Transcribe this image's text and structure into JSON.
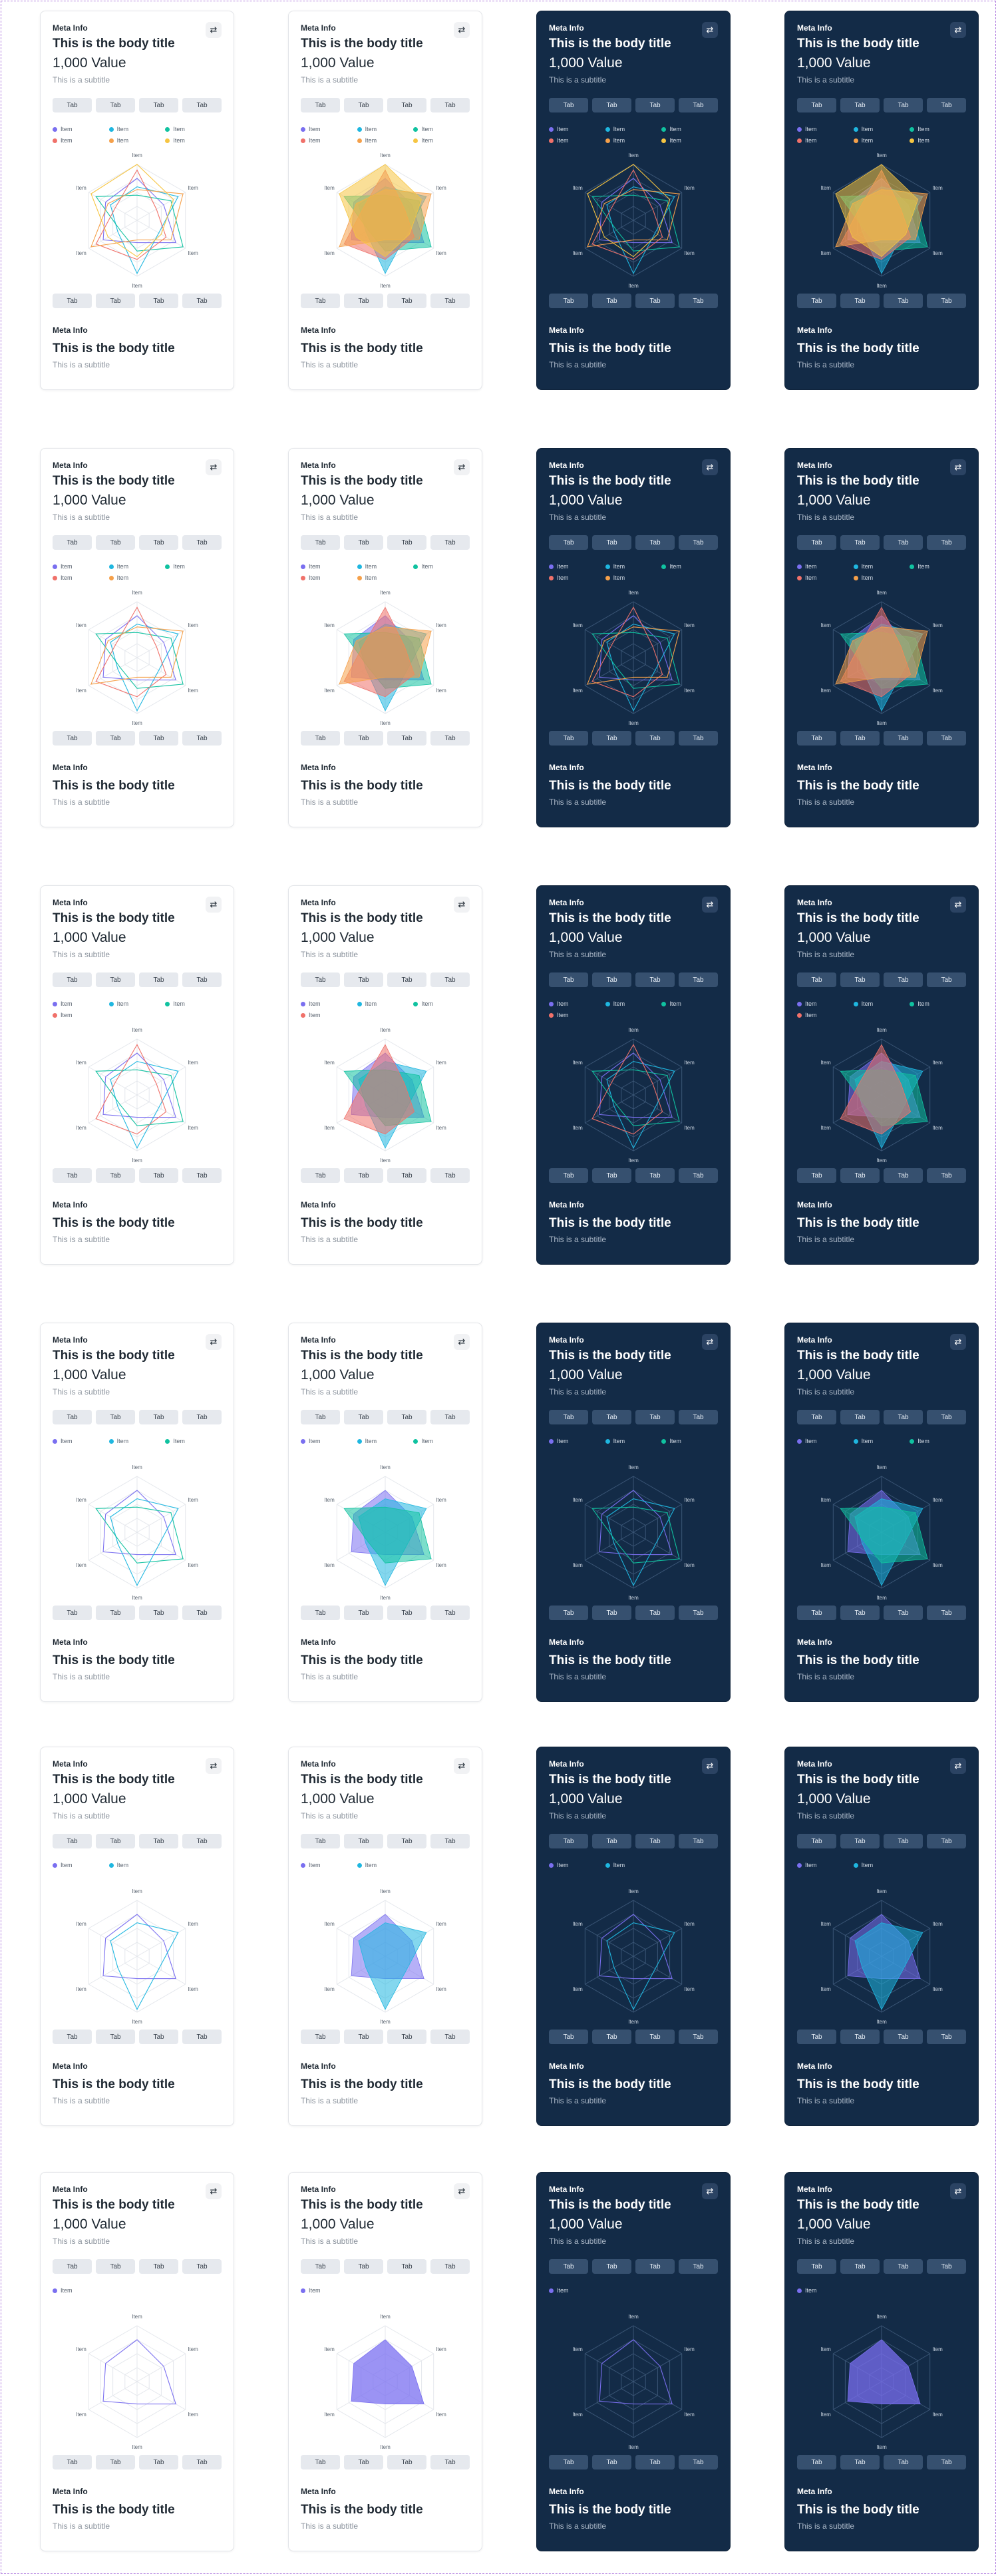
{
  "card": {
    "meta": "Meta Info",
    "title": "This is the body title",
    "value": "1,000 Value",
    "subtitle": "This is a subtitle",
    "swap_icon": "swap-arrows-icon",
    "tab_label": "Tab",
    "bottom_meta": "Meta Info",
    "bottom_title": "This is the body title",
    "bottom_subtitle": "This is a subtitle"
  },
  "axis_label": "Item",
  "legend_label": "Item",
  "colors": {
    "light_background": "#ffffff",
    "dark_background": "#132b47",
    "series": [
      "#7a6ff0",
      "#1fb7e0",
      "#10c2a0",
      "#f0716a",
      "#f5a04a",
      "#f6c542"
    ]
  },
  "variants": [
    "light-lines",
    "light-filled",
    "dark-lines",
    "dark-filled"
  ],
  "chart_data": [
    {
      "type": "radar",
      "axes": [
        "Item",
        "Item",
        "Item",
        "Item",
        "Item",
        "Item"
      ],
      "series": [
        {
          "name": "Item",
          "values": [
            75,
            55,
            80,
            40,
            70,
            65
          ]
        },
        {
          "name": "Item",
          "values": [
            60,
            85,
            45,
            95,
            40,
            55
          ]
        },
        {
          "name": "Item",
          "values": [
            45,
            70,
            95,
            55,
            35,
            85
          ]
        },
        {
          "name": "Item",
          "values": [
            90,
            40,
            60,
            70,
            85,
            45
          ]
        },
        {
          "name": "Item",
          "values": [
            55,
            95,
            70,
            35,
            95,
            60
          ]
        },
        {
          "name": "Item",
          "values": [
            100,
            75,
            50,
            65,
            60,
            95
          ]
        }
      ]
    },
    {
      "type": "radar",
      "axes": [
        "Item",
        "Item",
        "Item",
        "Item",
        "Item",
        "Item"
      ],
      "series": [
        {
          "name": "Item",
          "values": [
            75,
            55,
            80,
            40,
            70,
            65
          ]
        },
        {
          "name": "Item",
          "values": [
            60,
            85,
            45,
            95,
            40,
            55
          ]
        },
        {
          "name": "Item",
          "values": [
            45,
            70,
            95,
            55,
            35,
            85
          ]
        },
        {
          "name": "Item",
          "values": [
            90,
            40,
            60,
            70,
            85,
            45
          ]
        },
        {
          "name": "Item",
          "values": [
            55,
            95,
            70,
            35,
            95,
            60
          ]
        }
      ]
    },
    {
      "type": "radar",
      "axes": [
        "Item",
        "Item",
        "Item",
        "Item",
        "Item",
        "Item"
      ],
      "series": [
        {
          "name": "Item",
          "values": [
            75,
            55,
            80,
            40,
            70,
            65
          ]
        },
        {
          "name": "Item",
          "values": [
            60,
            85,
            45,
            95,
            40,
            55
          ]
        },
        {
          "name": "Item",
          "values": [
            45,
            70,
            95,
            55,
            35,
            85
          ]
        },
        {
          "name": "Item",
          "values": [
            90,
            40,
            60,
            70,
            85,
            45
          ]
        }
      ]
    },
    {
      "type": "radar",
      "axes": [
        "Item",
        "Item",
        "Item",
        "Item",
        "Item",
        "Item"
      ],
      "series": [
        {
          "name": "Item",
          "values": [
            75,
            55,
            80,
            40,
            70,
            65
          ]
        },
        {
          "name": "Item",
          "values": [
            60,
            85,
            45,
            95,
            40,
            55
          ]
        },
        {
          "name": "Item",
          "values": [
            45,
            70,
            95,
            55,
            35,
            85
          ]
        }
      ]
    },
    {
      "type": "radar",
      "axes": [
        "Item",
        "Item",
        "Item",
        "Item",
        "Item",
        "Item"
      ],
      "series": [
        {
          "name": "Item",
          "values": [
            75,
            55,
            80,
            40,
            70,
            65
          ]
        },
        {
          "name": "Item",
          "values": [
            60,
            85,
            45,
            95,
            40,
            55
          ]
        }
      ]
    },
    {
      "type": "radar",
      "axes": [
        "Item",
        "Item",
        "Item",
        "Item",
        "Item",
        "Item"
      ],
      "series": [
        {
          "name": "Item",
          "values": [
            75,
            55,
            80,
            40,
            70,
            65
          ]
        }
      ]
    }
  ]
}
